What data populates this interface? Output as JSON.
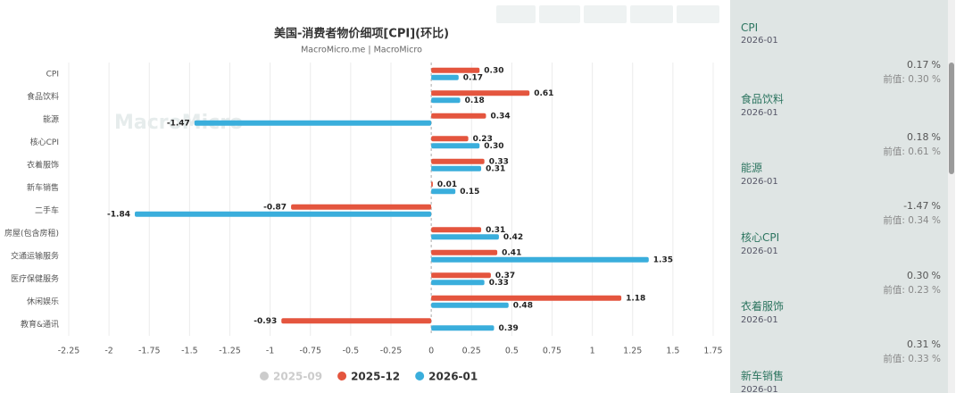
{
  "chart_data": {
    "type": "hbar",
    "title": "美国-消费者物价细项[CPI](环比)",
    "subtitle": "MacroMicro.me | MacroMicro",
    "watermark": "MacroMicro",
    "categories": [
      "CPI",
      "食品饮料",
      "能源",
      "核心CPI",
      "衣着服饰",
      "新车销售",
      "二手车",
      "房屋(包含房租)",
      "交通运输服务",
      "医疗保健服务",
      "休闲娱乐",
      "教育&通讯"
    ],
    "series": [
      {
        "name": "2025-09",
        "color": "#c8c8c8",
        "visible": false,
        "values": [
          null,
          null,
          null,
          null,
          null,
          null,
          null,
          null,
          null,
          null,
          null,
          null
        ]
      },
      {
        "name": "2025-12",
        "color": "#e4553e",
        "visible": true,
        "values": [
          0.3,
          0.61,
          0.34,
          0.23,
          0.33,
          0.01,
          -0.87,
          0.31,
          0.41,
          0.37,
          1.18,
          -0.93
        ],
        "value_labels": [
          "0.30",
          "0.61",
          "0.34",
          "0.23",
          "0.33",
          "0.01",
          "-0.87",
          "0.31",
          "0.41",
          "0.37",
          "1.18",
          "-0.93"
        ]
      },
      {
        "name": "2026-01",
        "color": "#3aaedc",
        "visible": true,
        "values": [
          0.17,
          0.18,
          -1.47,
          0.3,
          0.31,
          0.15,
          -1.84,
          0.42,
          1.35,
          0.33,
          0.48,
          0.39
        ],
        "value_labels": [
          "0.17",
          "0.18",
          "-1.47",
          "0.30",
          "0.31",
          "0.15",
          "-1.84",
          "0.42",
          "1.35",
          "0.33",
          "0.48",
          "0.39"
        ]
      }
    ],
    "xlim": [
      -2.25,
      1.75
    ],
    "xticks": [
      -2.25,
      -2,
      -1.75,
      -1.5,
      -1.25,
      -1,
      -0.75,
      -0.5,
      -0.25,
      0,
      0.25,
      0.5,
      0.75,
      1,
      1.25,
      1.5,
      1.75
    ],
    "grid": true
  },
  "sidebar": {
    "items": [
      {
        "name": "CPI",
        "date": "2026-01",
        "value": "0.17",
        "unit": "%",
        "prev": "前值: 0.30 %"
      },
      {
        "name": "食品饮料",
        "date": "2026-01",
        "value": "0.18",
        "unit": "%",
        "prev": "前值: 0.61 %"
      },
      {
        "name": "能源",
        "date": "2026-01",
        "value": "-1.47",
        "unit": "%",
        "prev": "前值: 0.34 %"
      },
      {
        "name": "核心CPI",
        "date": "2026-01",
        "value": "0.30",
        "unit": "%",
        "prev": "前值: 0.23 %"
      },
      {
        "name": "衣着服饰",
        "date": "2026-01",
        "value": "0.31",
        "unit": "%",
        "prev": "前值: 0.33 %"
      },
      {
        "name": "新车销售",
        "date": "2026-01"
      }
    ]
  }
}
